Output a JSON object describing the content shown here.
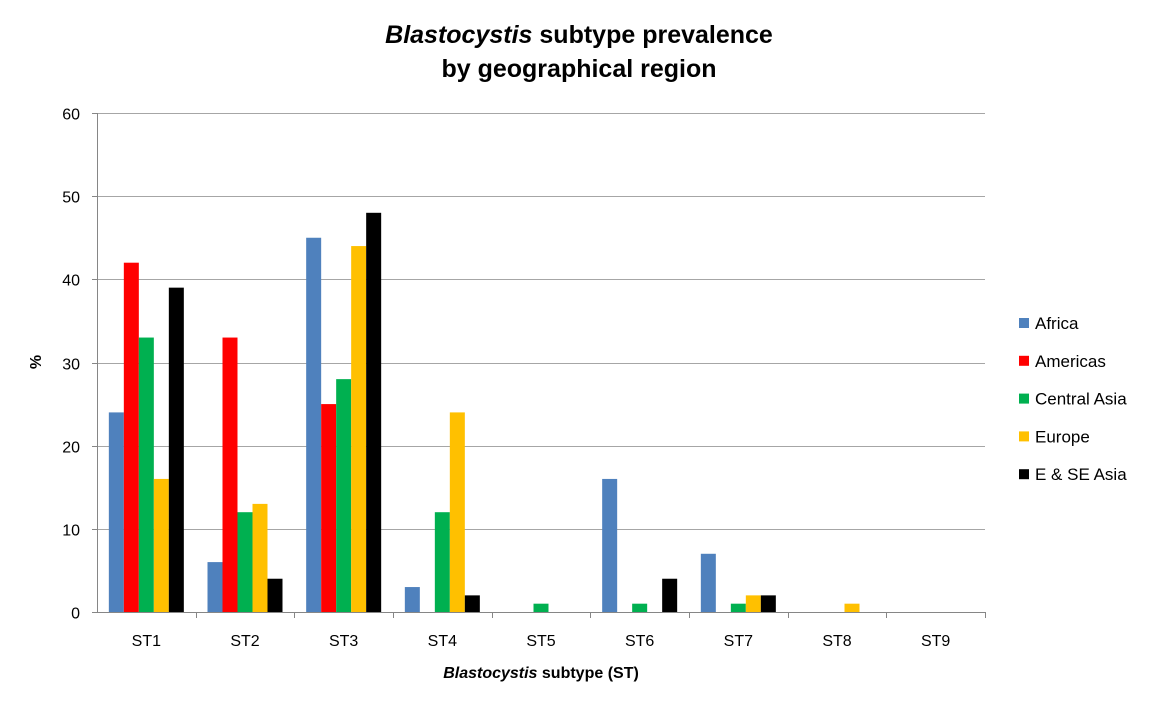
{
  "chart_data": {
    "type": "bar",
    "title_italic": "Blastocystis",
    "title_rest": " subtype prevalence",
    "title_line2": "by geographical region",
    "xlabel_italic": "Blastocystis",
    "xlabel_rest": " subtype (ST)",
    "ylabel": "%",
    "ylim": [
      0,
      60
    ],
    "yticks": [
      0,
      10,
      20,
      30,
      40,
      50,
      60
    ],
    "grid": true,
    "legend_position": "right",
    "categories": [
      "ST1",
      "ST2",
      "ST3",
      "ST4",
      "ST5",
      "ST6",
      "ST7",
      "ST8",
      "ST9"
    ],
    "series": [
      {
        "name": "Africa",
        "color": "#4f81bd",
        "values": [
          24,
          6,
          45,
          3,
          0,
          16,
          7,
          0,
          0
        ]
      },
      {
        "name": "Americas",
        "color": "#ff0000",
        "values": [
          42,
          33,
          25,
          0,
          0,
          0,
          0,
          0,
          0
        ]
      },
      {
        "name": "Central Asia",
        "color": "#00b050",
        "values": [
          33,
          12,
          28,
          12,
          1,
          1,
          1,
          0,
          0
        ]
      },
      {
        "name": "Europe",
        "color": "#ffc000",
        "values": [
          16,
          13,
          44,
          24,
          0,
          0,
          2,
          1,
          0
        ]
      },
      {
        "name": "E & SE Asia",
        "color": "#000000",
        "values": [
          39,
          4,
          48,
          2,
          0,
          4,
          2,
          0,
          0
        ]
      }
    ]
  }
}
